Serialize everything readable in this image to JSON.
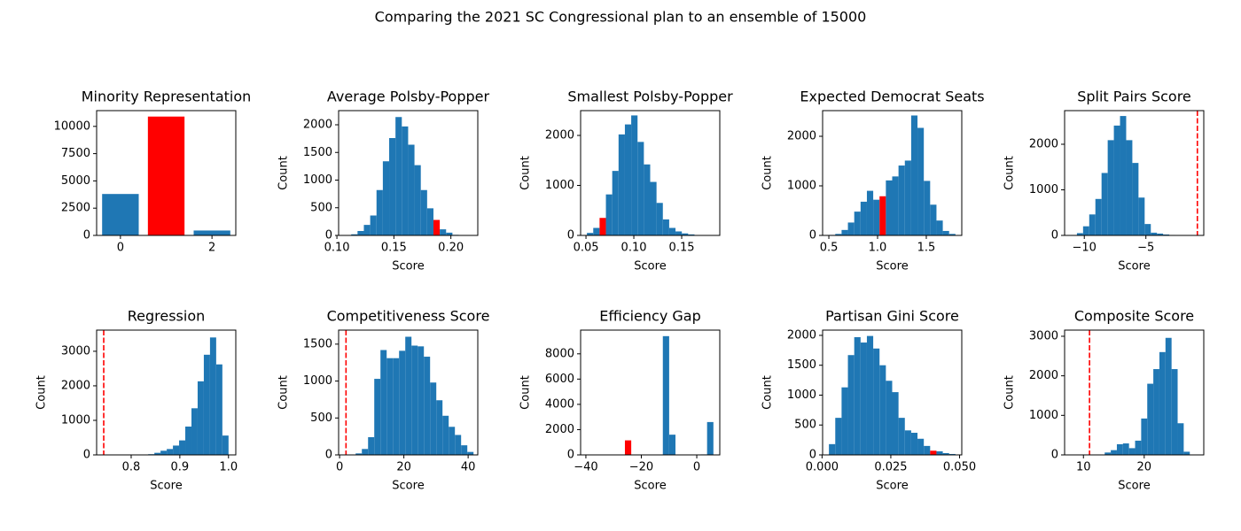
{
  "title": "Comparing the 2021 SC Congressional plan to an ensemble of 15000",
  "chart_data": [
    {
      "type": "bar",
      "title": "Minority Representation",
      "x": [
        0,
        1,
        2
      ],
      "values": [
        3800,
        10900,
        450
      ],
      "colors": [
        "#1f77b4",
        "#ff0000",
        "#1f77b4"
      ],
      "xlim": [
        -0.52,
        2.52
      ],
      "ylim": [
        0,
        11445
      ],
      "xticks": [
        0,
        2
      ],
      "yticks": [
        0,
        2500,
        5000,
        7500,
        10000
      ]
    },
    {
      "type": "histogram",
      "title": "Average Polsby-Popper",
      "xlabel": "Score",
      "ylabel": "Count",
      "bins": [
        0.107,
        0.11255,
        0.1181,
        0.12365,
        0.1292,
        0.13475,
        0.1403,
        0.14585,
        0.1514,
        0.15695,
        0.1625,
        0.16805,
        0.1736,
        0.17915,
        0.1847,
        0.19025,
        0.1958,
        0.20135,
        0.2069,
        0.21245,
        0.218
      ],
      "values": [
        5,
        20,
        80,
        190,
        360,
        820,
        1340,
        1760,
        2140,
        1970,
        1640,
        1270,
        820,
        490,
        280,
        110,
        50,
        10,
        5,
        2
      ],
      "colors": [
        "#1f77b4",
        "#1f77b4",
        "#1f77b4",
        "#1f77b4",
        "#1f77b4",
        "#1f77b4",
        "#1f77b4",
        "#1f77b4",
        "#1f77b4",
        "#1f77b4",
        "#1f77b4",
        "#1f77b4",
        "#1f77b4",
        "#1f77b4",
        "#ff0000",
        "#1f77b4",
        "#1f77b4",
        "#1f77b4",
        "#1f77b4",
        "#1f77b4"
      ],
      "xlim": [
        0.1015,
        0.2236
      ],
      "ylim": [
        0,
        2256
      ],
      "xticks": [
        {
          "value": 0.1,
          "label": "0.10"
        },
        0.15,
        {
          "value": 0.2,
          "label": "0.20"
        }
      ],
      "yticks": [
        0,
        500,
        1000,
        1500,
        2000
      ]
    },
    {
      "type": "histogram",
      "title": "Smallest Polsby-Popper",
      "xlabel": "Score",
      "ylabel": "Count",
      "bins": [
        0.051,
        0.05761,
        0.06422,
        0.07083,
        0.07744,
        0.08405,
        0.09066,
        0.09727,
        0.10388,
        0.11049,
        0.1171,
        0.12371,
        0.13032,
        0.13693,
        0.14354,
        0.15015,
        0.15676,
        0.16337,
        0.16998,
        0.17659,
        0.1832
      ],
      "values": [
        50,
        150,
        350,
        820,
        1290,
        2020,
        2220,
        2400,
        1870,
        1420,
        1070,
        650,
        320,
        150,
        80,
        40,
        20,
        5,
        3,
        2
      ],
      "colors": [
        "#1f77b4",
        "#1f77b4",
        "#ff0000",
        "#1f77b4",
        "#1f77b4",
        "#1f77b4",
        "#1f77b4",
        "#1f77b4",
        "#1f77b4",
        "#1f77b4",
        "#1f77b4",
        "#1f77b4",
        "#1f77b4",
        "#1f77b4",
        "#1f77b4",
        "#1f77b4",
        "#1f77b4",
        "#1f77b4",
        "#1f77b4",
        "#1f77b4"
      ],
      "xlim": [
        0.0444,
        0.1898
      ],
      "ylim": [
        0,
        2496
      ],
      "xticks": [
        0.05,
        {
          "value": 0.1,
          "label": "0.10"
        },
        0.15
      ],
      "yticks": [
        0,
        1000,
        2000
      ]
    },
    {
      "type": "histogram",
      "title": "Expected Democrat Seats",
      "xlabel": "Score",
      "ylabel": "Count",
      "bins": [
        0.501,
        0.5659,
        0.6308,
        0.6957,
        0.7606,
        0.8255,
        0.8904,
        0.9553,
        1.0202,
        1.0851,
        1.15,
        1.2149,
        1.2798,
        1.3447,
        1.4096,
        1.4745,
        1.5394,
        1.6043,
        1.6692,
        1.7341,
        1.799
      ],
      "values": [
        10,
        30,
        110,
        260,
        480,
        680,
        900,
        720,
        790,
        1110,
        1190,
        1410,
        1510,
        2420,
        2170,
        1100,
        620,
        300,
        90,
        30
      ],
      "colors": [
        "#1f77b4",
        "#1f77b4",
        "#1f77b4",
        "#1f77b4",
        "#1f77b4",
        "#1f77b4",
        "#1f77b4",
        "#1f77b4",
        "#ff0000",
        "#1f77b4",
        "#1f77b4",
        "#1f77b4",
        "#1f77b4",
        "#1f77b4",
        "#1f77b4",
        "#1f77b4",
        "#1f77b4",
        "#1f77b4",
        "#1f77b4",
        "#1f77b4"
      ],
      "xlim": [
        0.436,
        1.864
      ],
      "ylim": [
        0,
        2518
      ],
      "xticks": [
        0.5,
        {
          "value": 1,
          "label": "1.0"
        },
        1.5
      ],
      "yticks": [
        0,
        1000,
        2000
      ]
    },
    {
      "type": "histogram",
      "title": "Split Pairs Score",
      "xlabel": "Score",
      "ylabel": "Count",
      "bins": [
        -11.1,
        -10.6,
        -10.1,
        -9.6,
        -9.1,
        -8.6,
        -8.1,
        -7.6,
        -7.1,
        -6.6,
        -6.1,
        -5.6,
        -5.1,
        -4.6,
        -4.1,
        -3.6,
        -3.1,
        -2.6
      ],
      "values": [
        10,
        50,
        200,
        460,
        800,
        1370,
        2090,
        2410,
        2620,
        2090,
        1590,
        830,
        250,
        60,
        40,
        20,
        10
      ],
      "color": "#1f77b4",
      "plan_line": {
        "value": -0.82,
        "color": "#ff0000",
        "style": "dashed"
      },
      "xlim": [
        -11.6,
        -0.3
      ],
      "ylim": [
        0,
        2738
      ],
      "xticks": [
        {
          "value": -10,
          "label": "−10"
        },
        {
          "value": -5,
          "label": "−5"
        }
      ],
      "yticks": [
        0,
        1000,
        2000
      ]
    },
    {
      "type": "histogram",
      "title": "Regression",
      "xlabel": "Score",
      "ylabel": "Count",
      "bins": [
        0.8223,
        0.835,
        0.8477,
        0.8604,
        0.8731,
        0.8858,
        0.8985,
        0.9112,
        0.9239,
        0.9366,
        0.9493,
        0.962,
        0.9747,
        0.9874,
        1.0001
      ],
      "values": [
        10,
        20,
        60,
        120,
        170,
        270,
        420,
        820,
        1350,
        2130,
        2900,
        3400,
        2620,
        560
      ],
      "color": "#1f77b4",
      "plan_line": {
        "value": 0.7436,
        "color": "#ff0000",
        "style": "dashed"
      },
      "xlim": [
        0.729,
        1.015
      ],
      "ylim": [
        0,
        3613
      ],
      "xticks": [
        0.8,
        0.9,
        {
          "value": 1,
          "label": "1.0"
        }
      ],
      "yticks": [
        0,
        1000,
        2000,
        3000
      ]
    },
    {
      "type": "histogram",
      "title": "Competitiveness Score",
      "xlabel": "Score",
      "ylabel": "Count",
      "bins": [
        5.0,
        6.93,
        8.86,
        10.79,
        12.72,
        14.65,
        16.58,
        18.51,
        20.44,
        22.37,
        24.3,
        26.23,
        28.16,
        30.09,
        32.02,
        33.95,
        35.88,
        37.81,
        39.74,
        41.67
      ],
      "values": [
        20,
        80,
        240,
        1030,
        1420,
        1310,
        1310,
        1410,
        1600,
        1480,
        1470,
        1330,
        980,
        740,
        530,
        380,
        270,
        130,
        40
      ],
      "color": "#1f77b4",
      "plan_line": {
        "value": 2.0,
        "color": "#ff0000",
        "style": "dashed"
      },
      "xlim": [
        -0.3,
        43
      ],
      "ylim": [
        0,
        1690
      ],
      "xticks": [
        0,
        20,
        40
      ],
      "yticks": [
        0,
        500,
        1000,
        1500
      ]
    },
    {
      "type": "histogram",
      "title": "Efficiency Gap",
      "xlabel": "Score",
      "ylabel": "Count",
      "bins": [
        -39.6,
        -37.32,
        -35.04,
        -32.76,
        -30.48,
        -28.2,
        -25.92,
        -23.64,
        -21.36,
        -19.08,
        -16.8,
        -14.52,
        -12.24,
        -9.96,
        -7.68,
        -5.4,
        -3.12,
        -0.84,
        1.44,
        3.72,
        6.0
      ],
      "values": [
        3,
        0,
        0,
        0,
        0,
        0,
        1150,
        0,
        0,
        0,
        0,
        0,
        9400,
        1600,
        0,
        0,
        0,
        0,
        40,
        2600
      ],
      "colors": [
        "#1f77b4",
        "#1f77b4",
        "#1f77b4",
        "#1f77b4",
        "#1f77b4",
        "#1f77b4",
        "#ff0000",
        "#1f77b4",
        "#1f77b4",
        "#1f77b4",
        "#1f77b4",
        "#1f77b4",
        "#1f77b4",
        "#1f77b4",
        "#1f77b4",
        "#1f77b4",
        "#1f77b4",
        "#1f77b4",
        "#1f77b4",
        "#1f77b4"
      ],
      "xlim": [
        -41.9,
        8.3
      ],
      "ylim": [
        0,
        9878
      ],
      "xticks": [
        {
          "value": -40,
          "label": "−40"
        },
        {
          "value": -20,
          "label": "−20"
        },
        0
      ],
      "yticks": [
        0,
        2000,
        4000,
        6000,
        8000
      ]
    },
    {
      "type": "histogram",
      "title": "Partisan Gini Score",
      "xlabel": "Score",
      "ylabel": "Count",
      "bins": [
        0.0025,
        0.0048,
        0.0071,
        0.0094,
        0.0117,
        0.014,
        0.0163,
        0.0186,
        0.0209,
        0.0232,
        0.0255,
        0.0278,
        0.0301,
        0.0324,
        0.0347,
        0.037,
        0.0393,
        0.0416,
        0.0439,
        0.0462,
        0.0485
      ],
      "values": [
        180,
        620,
        1130,
        1670,
        1970,
        1880,
        1990,
        1780,
        1500,
        1240,
        1050,
        620,
        410,
        370,
        270,
        150,
        70,
        60,
        30,
        15
      ],
      "colors": [
        "#1f77b4",
        "#1f77b4",
        "#1f77b4",
        "#1f77b4",
        "#1f77b4",
        "#1f77b4",
        "#1f77b4",
        "#1f77b4",
        "#1f77b4",
        "#1f77b4",
        "#1f77b4",
        "#1f77b4",
        "#1f77b4",
        "#1f77b4",
        "#1f77b4",
        "#1f77b4",
        "#ff0000",
        "#1f77b4",
        "#1f77b4",
        "#1f77b4"
      ],
      "xlim": [
        0.0002,
        0.0508
      ],
      "ylim": [
        0,
        2088
      ],
      "xticks": [
        {
          "value": 0,
          "label": "0.000"
        },
        0.025,
        {
          "value": 0.05,
          "label": "0.050"
        }
      ],
      "yticks": [
        0,
        500,
        1000,
        1500,
        2000
      ]
    },
    {
      "type": "histogram",
      "title": "Composite Score",
      "xlabel": "Score",
      "ylabel": "Count",
      "bins": [
        13.5,
        14.5,
        15.5,
        16.5,
        17.5,
        18.5,
        19.5,
        20.5,
        21.5,
        22.5,
        23.5,
        24.5,
        25.5,
        26.5,
        27.5
      ],
      "values": [
        60,
        120,
        270,
        290,
        170,
        360,
        920,
        1800,
        2170,
        2600,
        2960,
        2170,
        800,
        80
      ],
      "color": "#1f77b4",
      "plan_line": {
        "value": 11.0,
        "color": "#ff0000",
        "style": "dashed"
      },
      "xlim": [
        6.9,
        29.8
      ],
      "ylim": [
        0,
        3156
      ],
      "xticks": [
        10,
        20
      ],
      "yticks": [
        0,
        1000,
        2000,
        3000
      ]
    }
  ]
}
